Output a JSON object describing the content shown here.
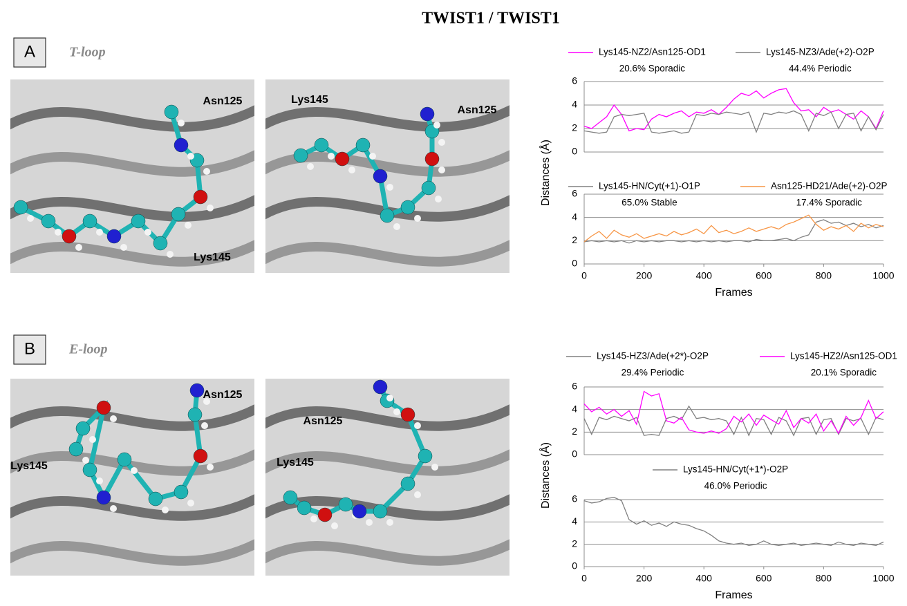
{
  "title": "TWIST1 / TWIST1",
  "panels": [
    {
      "letter": "A",
      "loop": "T-loop",
      "images": [
        {
          "labels": [
            "Asn125",
            "Lys145"
          ]
        },
        {
          "labels": [
            "Lys145",
            "Asn125"
          ]
        }
      ]
    },
    {
      "letter": "B",
      "loop": "E-loop",
      "images": [
        {
          "labels": [
            "Asn125",
            "Lys145"
          ]
        },
        {
          "labels": [
            "Asn125",
            "Lys145"
          ]
        }
      ]
    }
  ],
  "chart_data": [
    {
      "type": "line",
      "ylabel": "Distances (Å)",
      "x": [
        0,
        25,
        50,
        75,
        100,
        125,
        150,
        175,
        200,
        225,
        250,
        275,
        300,
        325,
        350,
        375,
        400,
        425,
        450,
        475,
        500,
        525,
        550,
        575,
        600,
        625,
        650,
        675,
        700,
        725,
        750,
        775,
        800,
        825,
        850,
        875,
        900,
        925,
        950,
        975,
        1000
      ],
      "xlim": [
        0,
        1000
      ],
      "ylim": [
        0,
        6
      ],
      "yticks": [
        0,
        2,
        4,
        6
      ],
      "grid": true,
      "annotations": [
        "20.6% Sporadic",
        "44.4% Periodic"
      ],
      "series": [
        {
          "name": "Lys145-NZ2/Asn125-OD1",
          "color": "#ff00ff",
          "values": [
            2.2,
            2.0,
            2.5,
            3.0,
            4.0,
            3.2,
            1.8,
            2.0,
            1.9,
            2.8,
            3.2,
            3.0,
            3.3,
            3.5,
            3.0,
            3.4,
            3.3,
            3.6,
            3.2,
            3.8,
            4.5,
            5.0,
            4.8,
            5.2,
            4.6,
            5.0,
            5.3,
            5.4,
            4.2,
            3.5,
            3.6,
            3.0,
            3.8,
            3.4,
            3.6,
            3.2,
            2.8,
            3.5,
            3.0,
            2.0,
            3.5
          ]
        },
        {
          "name": "Lys145-NZ3/Ade(+2)-O2P",
          "color": "#808080",
          "values": [
            1.8,
            1.7,
            1.6,
            1.7,
            3.0,
            3.2,
            3.1,
            3.2,
            3.3,
            1.7,
            1.6,
            1.7,
            1.8,
            1.6,
            1.7,
            3.2,
            3.1,
            3.3,
            3.2,
            3.4,
            3.3,
            3.2,
            3.4,
            1.7,
            3.3,
            3.2,
            3.4,
            3.3,
            3.5,
            3.2,
            1.8,
            3.3,
            3.1,
            3.4,
            2.0,
            3.2,
            3.3,
            1.8,
            3.0,
            1.9,
            3.2
          ]
        }
      ]
    },
    {
      "type": "line",
      "xlabel": "Frames",
      "x": [
        0,
        25,
        50,
        75,
        100,
        125,
        150,
        175,
        200,
        225,
        250,
        275,
        300,
        325,
        350,
        375,
        400,
        425,
        450,
        475,
        500,
        525,
        550,
        575,
        600,
        625,
        650,
        675,
        700,
        725,
        750,
        775,
        800,
        825,
        850,
        875,
        900,
        925,
        950,
        975,
        1000
      ],
      "xlim": [
        0,
        1000
      ],
      "xticks": [
        0,
        200,
        400,
        600,
        800,
        1000
      ],
      "ylim": [
        0,
        6
      ],
      "yticks": [
        0,
        2,
        4,
        6
      ],
      "grid": true,
      "annotations": [
        "65.0% Stable",
        "17.4% Sporadic"
      ],
      "series": [
        {
          "name": "Lys145-HN/Cyt(+1)-O1P",
          "color": "#808080",
          "values": [
            1.9,
            2.0,
            1.9,
            2.0,
            1.9,
            2.0,
            1.8,
            2.0,
            1.9,
            2.0,
            1.9,
            2.0,
            2.0,
            1.9,
            2.0,
            1.9,
            2.0,
            1.9,
            2.0,
            1.9,
            2.0,
            2.0,
            1.9,
            2.1,
            2.0,
            2.0,
            2.1,
            2.2,
            2.0,
            2.3,
            2.5,
            3.6,
            3.8,
            3.5,
            3.6,
            3.3,
            3.5,
            3.2,
            3.4,
            3.1,
            3.3
          ]
        },
        {
          "name": "Asn125-HD21/Ade(+2)-O2P",
          "color": "#f79646",
          "values": [
            1.9,
            2.4,
            2.8,
            2.2,
            2.9,
            2.5,
            2.3,
            2.6,
            2.2,
            2.4,
            2.6,
            2.4,
            2.8,
            2.5,
            2.7,
            3.0,
            2.6,
            3.3,
            2.7,
            2.9,
            2.6,
            2.8,
            3.1,
            2.8,
            3.0,
            3.2,
            3.0,
            3.4,
            3.6,
            3.9,
            4.2,
            3.4,
            2.9,
            3.2,
            3.0,
            3.3,
            2.8,
            3.5,
            3.1,
            3.4,
            3.2
          ]
        }
      ]
    },
    {
      "type": "line",
      "ylabel": "Distances (Å)",
      "x": [
        0,
        25,
        50,
        75,
        100,
        125,
        150,
        175,
        200,
        225,
        250,
        275,
        300,
        325,
        350,
        375,
        400,
        425,
        450,
        475,
        500,
        525,
        550,
        575,
        600,
        625,
        650,
        675,
        700,
        725,
        750,
        775,
        800,
        825,
        850,
        875,
        900,
        925,
        950,
        975,
        1000
      ],
      "xlim": [
        0,
        1000
      ],
      "ylim": [
        0,
        6
      ],
      "yticks": [
        0,
        2,
        4,
        6
      ],
      "grid": true,
      "annotations": [
        "29.4% Periodic",
        "20.1% Sporadic"
      ],
      "series": [
        {
          "name": "Lys145-HZ3/Ade(+2*)-O2P",
          "color": "#808080",
          "values": [
            3.2,
            1.8,
            3.3,
            3.1,
            3.4,
            3.2,
            3.0,
            3.3,
            1.7,
            1.8,
            1.7,
            3.2,
            3.4,
            3.1,
            4.3,
            3.2,
            3.3,
            3.1,
            3.2,
            3.0,
            1.8,
            3.3,
            1.7,
            3.2,
            3.1,
            1.8,
            3.3,
            3.0,
            1.7,
            3.2,
            3.3,
            1.8,
            3.1,
            3.2,
            1.8,
            3.2,
            3.0,
            3.2,
            1.8,
            3.3,
            3.1
          ]
        },
        {
          "name": "Lys145-HZ2/Asn125-OD1",
          "color": "#ff00ff",
          "values": [
            4.5,
            3.8,
            4.2,
            3.6,
            4.0,
            3.4,
            3.9,
            2.7,
            5.6,
            5.2,
            5.4,
            3.0,
            2.8,
            3.3,
            2.2,
            2.0,
            1.9,
            2.1,
            1.9,
            2.3,
            3.4,
            2.9,
            3.6,
            2.6,
            3.5,
            3.1,
            2.7,
            3.9,
            2.4,
            3.2,
            2.8,
            3.6,
            2.1,
            3.0,
            1.9,
            3.4,
            2.6,
            3.3,
            4.8,
            3.2,
            3.8
          ]
        }
      ]
    },
    {
      "type": "line",
      "xlabel": "Frames",
      "x": [
        0,
        25,
        50,
        75,
        100,
        125,
        150,
        175,
        200,
        225,
        250,
        275,
        300,
        325,
        350,
        375,
        400,
        425,
        450,
        475,
        500,
        525,
        550,
        575,
        600,
        625,
        650,
        675,
        700,
        725,
        750,
        775,
        800,
        825,
        850,
        875,
        900,
        925,
        950,
        975,
        1000
      ],
      "xlim": [
        0,
        1000
      ],
      "xticks": [
        0,
        200,
        400,
        600,
        800,
        1000
      ],
      "ylim": [
        0,
        6
      ],
      "yticks": [
        0,
        2,
        4,
        6
      ],
      "grid": true,
      "annotations": [
        "46.0% Periodic"
      ],
      "series": [
        {
          "name": "Lys145-HN/Cyt(+1*)-O2P",
          "color": "#808080",
          "values": [
            5.9,
            5.7,
            5.8,
            6.1,
            6.2,
            5.9,
            4.2,
            3.8,
            4.1,
            3.7,
            3.9,
            3.6,
            4.0,
            3.8,
            3.7,
            3.4,
            3.2,
            2.8,
            2.3,
            2.1,
            2.0,
            2.1,
            1.9,
            2.0,
            2.3,
            2.0,
            1.9,
            2.0,
            2.1,
            1.9,
            2.0,
            2.1,
            2.0,
            1.9,
            2.2,
            2.0,
            1.9,
            2.1,
            2.0,
            1.9,
            2.2
          ]
        }
      ]
    }
  ]
}
